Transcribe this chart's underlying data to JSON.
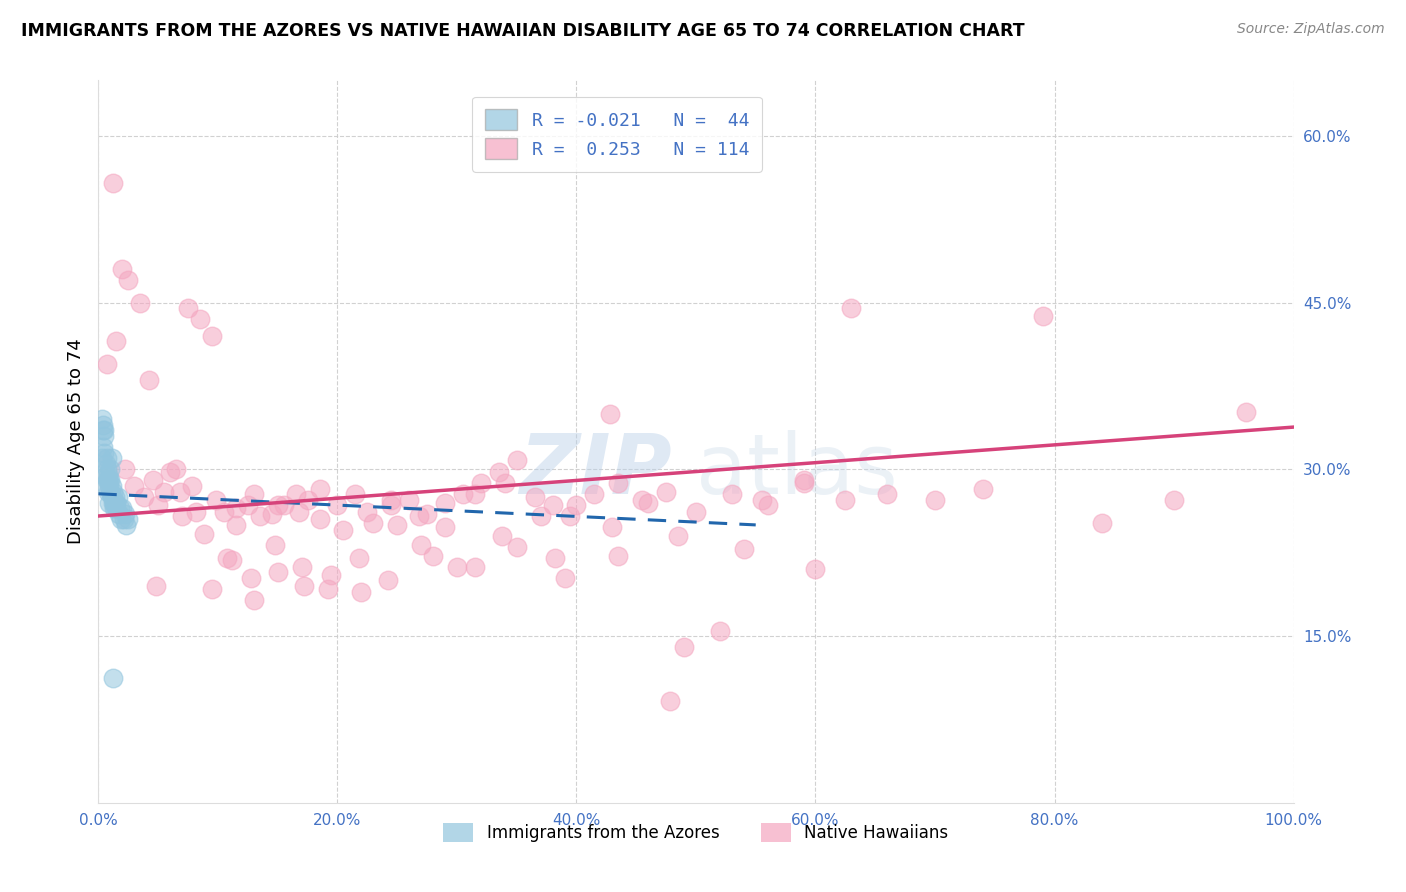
{
  "title": "IMMIGRANTS FROM THE AZORES VS NATIVE HAWAIIAN DISABILITY AGE 65 TO 74 CORRELATION CHART",
  "source": "Source: ZipAtlas.com",
  "ylabel": "Disability Age 65 to 74",
  "xlim": [
    0,
    1.0
  ],
  "ylim": [
    0,
    0.65
  ],
  "xticks": [
    0.0,
    0.2,
    0.4,
    0.6,
    0.8,
    1.0
  ],
  "yticks": [
    0.15,
    0.3,
    0.45,
    0.6
  ],
  "color_blue": "#92c5de",
  "color_pink": "#f4a6c0",
  "color_blue_line": "#2166ac",
  "color_pink_line": "#d6427a",
  "color_axis_label": "#4472c4",
  "watermark_zip": "ZIP",
  "watermark_atlas": "atlas",
  "legend_r1": "R = -0.021",
  "legend_n1": "N =  44",
  "legend_r2": "R =  0.253",
  "legend_n2": "N = 114",
  "blue_x": [
    0.003,
    0.004,
    0.004,
    0.005,
    0.005,
    0.006,
    0.006,
    0.007,
    0.007,
    0.008,
    0.008,
    0.009,
    0.009,
    0.01,
    0.01,
    0.011,
    0.011,
    0.012,
    0.012,
    0.013,
    0.013,
    0.014,
    0.014,
    0.015,
    0.015,
    0.016,
    0.017,
    0.018,
    0.019,
    0.02,
    0.021,
    0.022,
    0.023,
    0.025,
    0.003,
    0.004,
    0.005,
    0.006,
    0.007,
    0.008,
    0.009,
    0.01,
    0.011,
    0.012
  ],
  "blue_y": [
    0.345,
    0.335,
    0.34,
    0.33,
    0.335,
    0.285,
    0.295,
    0.29,
    0.3,
    0.28,
    0.29,
    0.27,
    0.285,
    0.29,
    0.28,
    0.275,
    0.285,
    0.27,
    0.28,
    0.27,
    0.265,
    0.275,
    0.27,
    0.265,
    0.27,
    0.275,
    0.26,
    0.265,
    0.255,
    0.265,
    0.255,
    0.26,
    0.25,
    0.255,
    0.31,
    0.32,
    0.315,
    0.305,
    0.31,
    0.295,
    0.29,
    0.3,
    0.31,
    0.112
  ],
  "pink_x": [
    0.007,
    0.015,
    0.022,
    0.03,
    0.038,
    0.046,
    0.055,
    0.065,
    0.075,
    0.085,
    0.095,
    0.105,
    0.115,
    0.125,
    0.135,
    0.145,
    0.155,
    0.165,
    0.175,
    0.185,
    0.2,
    0.215,
    0.23,
    0.245,
    0.26,
    0.275,
    0.29,
    0.305,
    0.32,
    0.335,
    0.35,
    0.365,
    0.38,
    0.395,
    0.415,
    0.435,
    0.455,
    0.475,
    0.5,
    0.53,
    0.56,
    0.59,
    0.625,
    0.66,
    0.7,
    0.74,
    0.79,
    0.84,
    0.9,
    0.96,
    0.02,
    0.035,
    0.05,
    0.068,
    0.082,
    0.098,
    0.115,
    0.13,
    0.15,
    0.168,
    0.185,
    0.205,
    0.225,
    0.245,
    0.268,
    0.29,
    0.315,
    0.34,
    0.37,
    0.4,
    0.43,
    0.46,
    0.49,
    0.52,
    0.555,
    0.59,
    0.63,
    0.012,
    0.025,
    0.042,
    0.06,
    0.078,
    0.095,
    0.112,
    0.13,
    0.15,
    0.172,
    0.195,
    0.22,
    0.25,
    0.28,
    0.315,
    0.35,
    0.39,
    0.435,
    0.485,
    0.54,
    0.6,
    0.048,
    0.07,
    0.088,
    0.108,
    0.128,
    0.148,
    0.17,
    0.192,
    0.218,
    0.242,
    0.27,
    0.3,
    0.338,
    0.382,
    0.428,
    0.478
  ],
  "pink_y": [
    0.395,
    0.415,
    0.3,
    0.285,
    0.275,
    0.29,
    0.28,
    0.3,
    0.445,
    0.435,
    0.42,
    0.262,
    0.25,
    0.268,
    0.258,
    0.26,
    0.268,
    0.278,
    0.272,
    0.282,
    0.268,
    0.278,
    0.252,
    0.268,
    0.272,
    0.26,
    0.27,
    0.278,
    0.288,
    0.298,
    0.308,
    0.275,
    0.268,
    0.258,
    0.278,
    0.288,
    0.272,
    0.28,
    0.262,
    0.278,
    0.268,
    0.288,
    0.272,
    0.278,
    0.272,
    0.282,
    0.438,
    0.252,
    0.272,
    0.352,
    0.48,
    0.45,
    0.268,
    0.28,
    0.262,
    0.272,
    0.265,
    0.278,
    0.268,
    0.262,
    0.255,
    0.245,
    0.262,
    0.272,
    0.258,
    0.248,
    0.278,
    0.288,
    0.258,
    0.268,
    0.248,
    0.27,
    0.14,
    0.155,
    0.272,
    0.29,
    0.445,
    0.558,
    0.47,
    0.38,
    0.298,
    0.285,
    0.192,
    0.218,
    0.182,
    0.208,
    0.195,
    0.205,
    0.19,
    0.25,
    0.222,
    0.212,
    0.23,
    0.202,
    0.222,
    0.24,
    0.228,
    0.21,
    0.195,
    0.258,
    0.242,
    0.22,
    0.202,
    0.232,
    0.212,
    0.192,
    0.22,
    0.2,
    0.232,
    0.212,
    0.24,
    0.22,
    0.35,
    0.092
  ],
  "blue_trend_x": [
    0.0,
    0.55
  ],
  "blue_trend_y_start": 0.278,
  "blue_trend_y_end": 0.25,
  "pink_trend_x": [
    0.0,
    1.0
  ],
  "pink_trend_y_start": 0.258,
  "pink_trend_y_end": 0.338
}
